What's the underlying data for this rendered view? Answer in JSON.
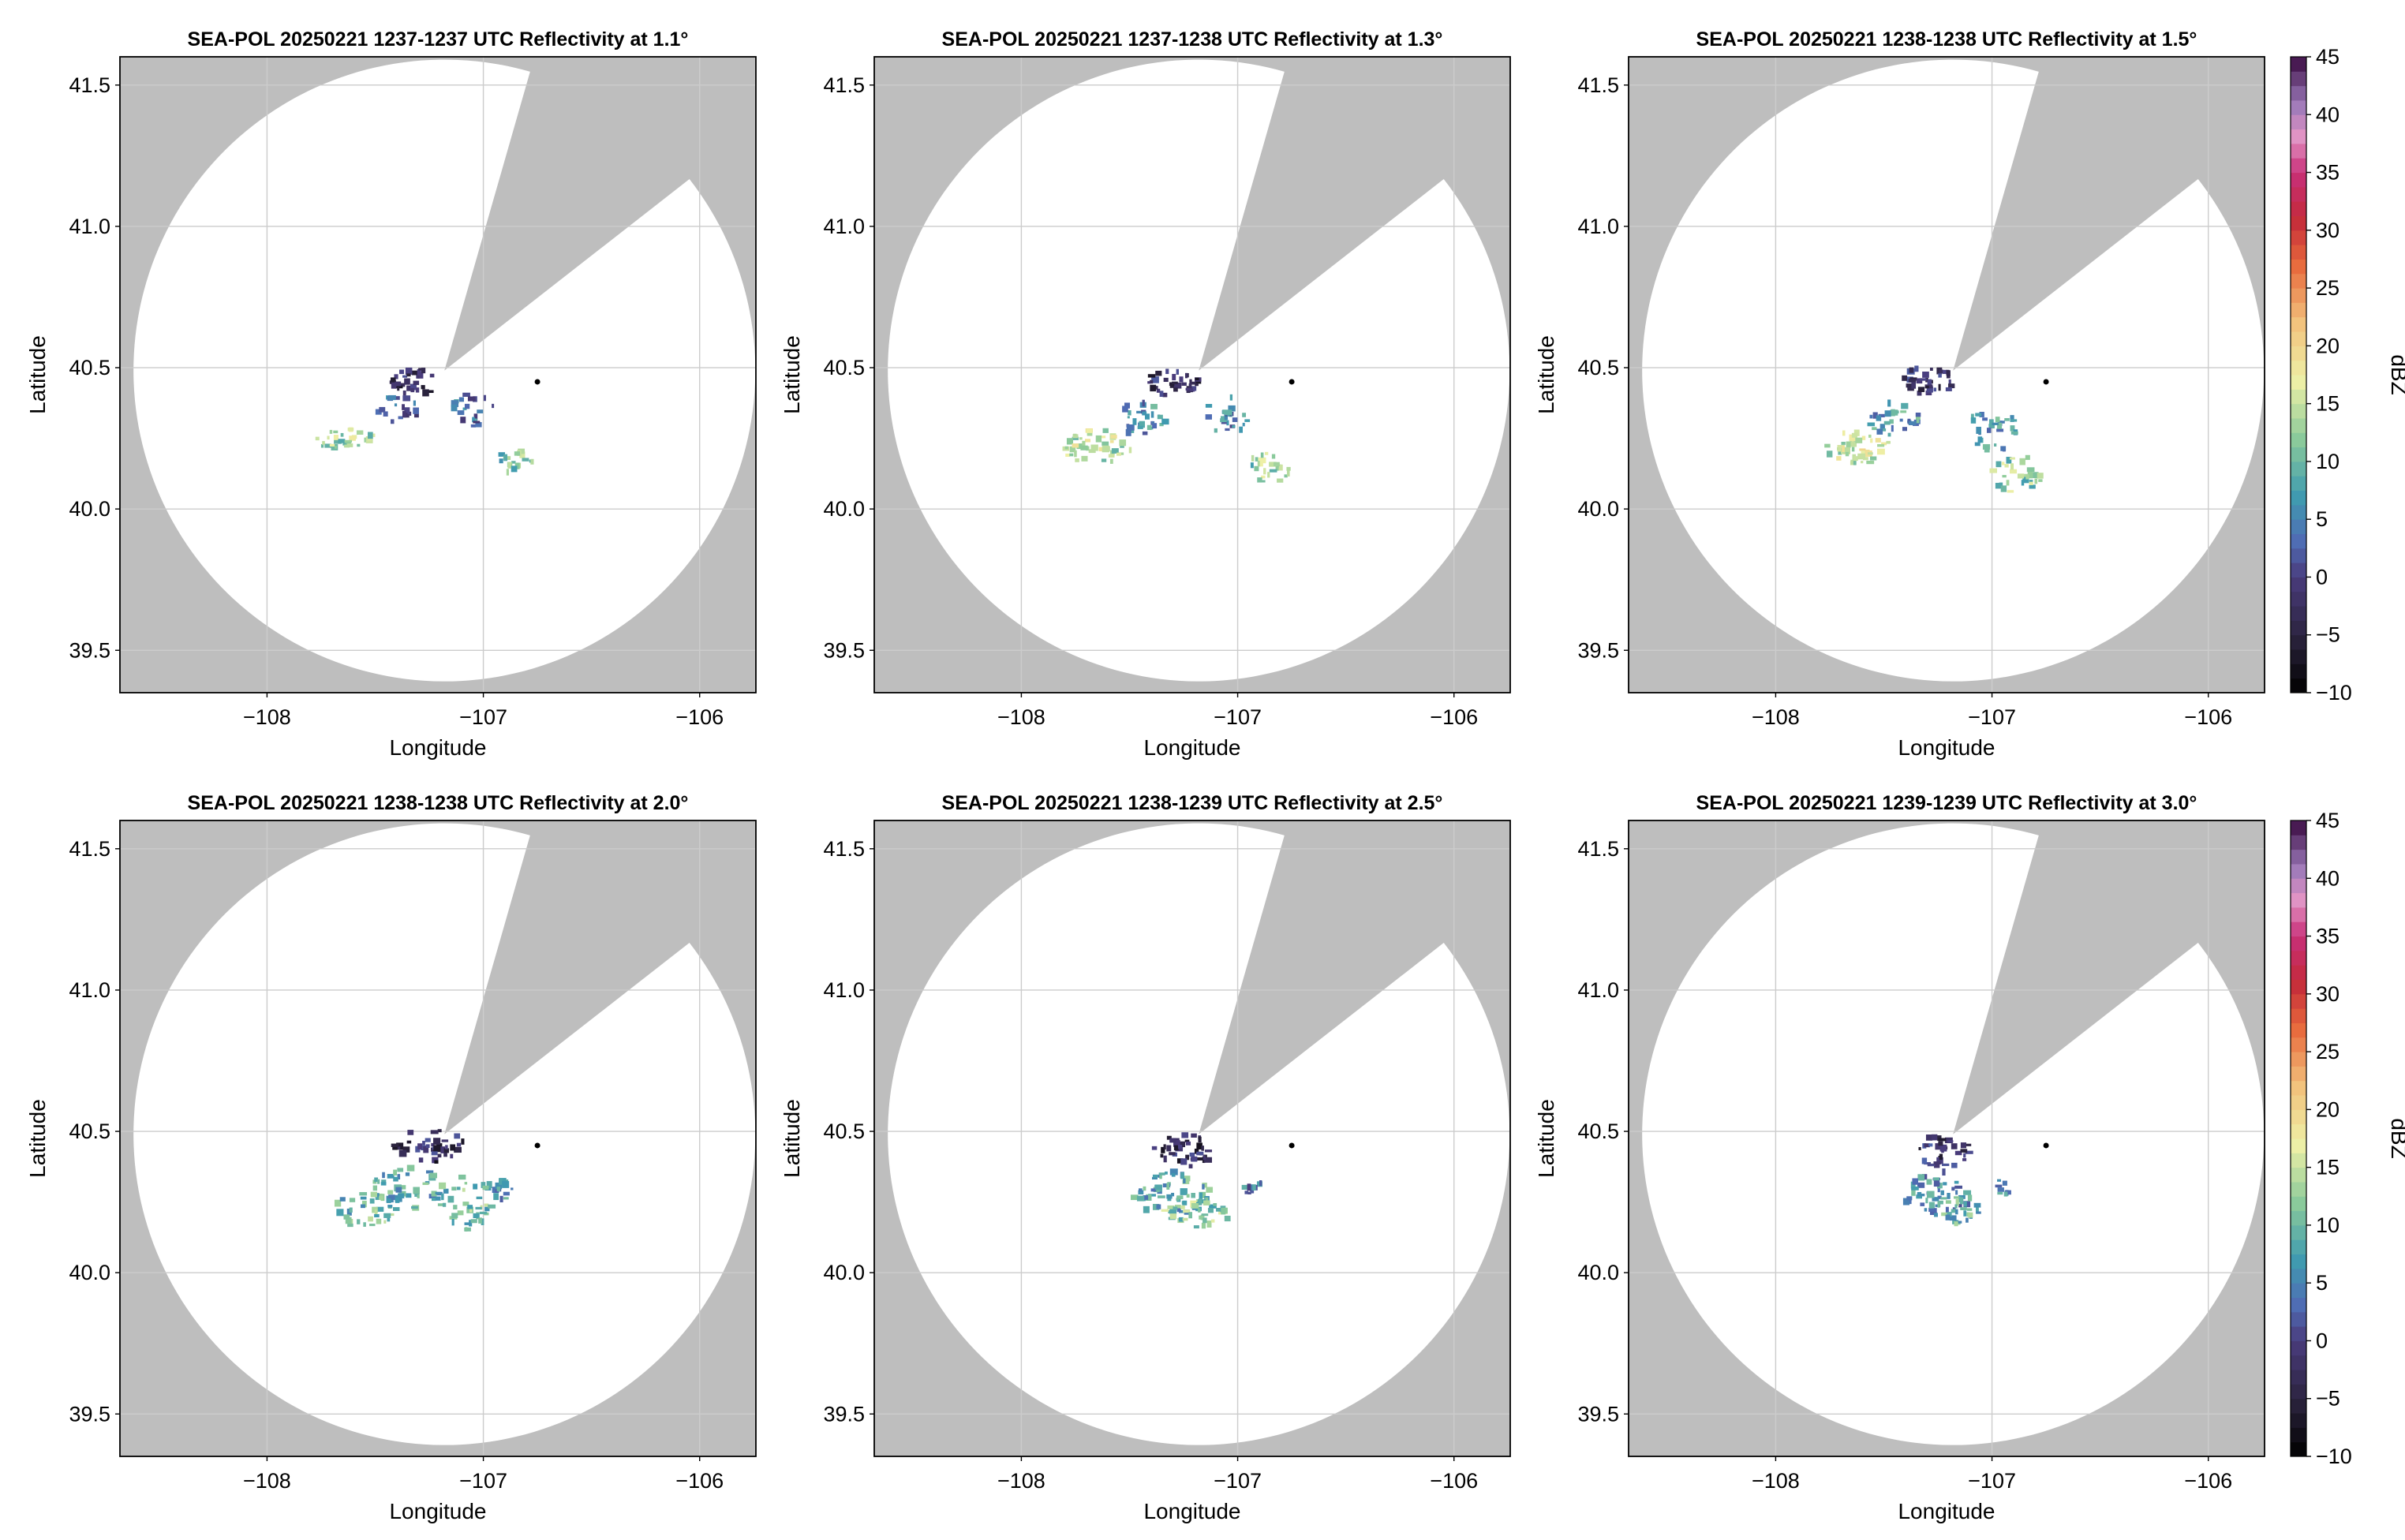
{
  "chart_data": [
    {
      "type": "heatmap",
      "title": "SEA-POL 20250221 1237-1237 UTC Reflectivity at 1.1°",
      "xlabel": "Longitude",
      "ylabel": "Latitude",
      "xlim": [
        -108.68,
        -105.74
      ],
      "ylim": [
        39.35,
        41.6
      ],
      "xticks": [
        -108,
        -107,
        -106
      ],
      "xtick_labels": [
        "−108",
        "−107",
        "−106"
      ],
      "yticks": [
        39.5,
        40.0,
        40.5,
        41.0,
        41.5
      ],
      "ytick_labels": [
        "39.5",
        "40.0",
        "40.5",
        "41.0",
        "41.5"
      ],
      "grid": true,
      "radar_center": [
        -107.18,
        40.49
      ],
      "coverage_radius_deg_lat": 1.1,
      "blocked_sector_deg": [
        16,
        52
      ],
      "marker": [
        -106.75,
        40.45
      ],
      "echo_clusters": [
        {
          "lon": -107.3,
          "lat": 40.45,
          "rlon": 0.12,
          "rlat": 0.05,
          "dbz": -3,
          "count": 30
        },
        {
          "lon": -107.4,
          "lat": 40.35,
          "rlon": 0.1,
          "rlat": 0.05,
          "dbz": 3,
          "count": 20
        },
        {
          "lon": -107.65,
          "lat": 40.25,
          "rlon": 0.14,
          "rlat": 0.04,
          "dbz": 13,
          "count": 30
        },
        {
          "lon": -107.05,
          "lat": 40.35,
          "rlon": 0.1,
          "rlat": 0.06,
          "dbz": 4,
          "count": 20
        },
        {
          "lon": -106.85,
          "lat": 40.17,
          "rlon": 0.08,
          "rlat": 0.05,
          "dbz": 11,
          "count": 18
        }
      ]
    },
    {
      "type": "heatmap",
      "title": "SEA-POL 20250221 1237-1238 UTC Reflectivity at 1.3°",
      "xlabel": "Longitude",
      "ylabel": "Latitude",
      "xlim": [
        -108.68,
        -105.74
      ],
      "ylim": [
        39.35,
        41.6
      ],
      "xticks": [
        -108,
        -107,
        -106
      ],
      "xtick_labels": [
        "−108",
        "−107",
        "−106"
      ],
      "yticks": [
        39.5,
        40.0,
        40.5,
        41.0,
        41.5
      ],
      "ytick_labels": [
        "39.5",
        "40.0",
        "40.5",
        "41.0",
        "41.5"
      ],
      "grid": true,
      "radar_center": [
        -107.18,
        40.49
      ],
      "coverage_radius_deg_lat": 1.1,
      "blocked_sector_deg": [
        16,
        52
      ],
      "marker": [
        -106.75,
        40.45
      ],
      "echo_clusters": [
        {
          "lon": -107.3,
          "lat": 40.45,
          "rlon": 0.12,
          "rlat": 0.05,
          "dbz": -3,
          "count": 35
        },
        {
          "lon": -107.45,
          "lat": 40.32,
          "rlon": 0.12,
          "rlat": 0.06,
          "dbz": 6,
          "count": 30
        },
        {
          "lon": -107.65,
          "lat": 40.22,
          "rlon": 0.16,
          "rlat": 0.06,
          "dbz": 14,
          "count": 45
        },
        {
          "lon": -107.05,
          "lat": 40.33,
          "rlon": 0.1,
          "rlat": 0.07,
          "dbz": 5,
          "count": 25
        },
        {
          "lon": -106.85,
          "lat": 40.15,
          "rlon": 0.1,
          "rlat": 0.06,
          "dbz": 12,
          "count": 25
        }
      ]
    },
    {
      "type": "heatmap",
      "title": "SEA-POL 20250221 1238-1238 UTC Reflectivity at 1.5°",
      "xlabel": "Longitude",
      "ylabel": "Latitude",
      "xlim": [
        -108.68,
        -105.74
      ],
      "ylim": [
        39.35,
        41.6
      ],
      "xticks": [
        -108,
        -107,
        -106
      ],
      "xtick_labels": [
        "−108",
        "−107",
        "−106"
      ],
      "yticks": [
        39.5,
        40.0,
        40.5,
        41.0,
        41.5
      ],
      "ytick_labels": [
        "39.5",
        "40.0",
        "40.5",
        "41.0",
        "41.5"
      ],
      "grid": true,
      "radar_center": [
        -107.18,
        40.49
      ],
      "coverage_radius_deg_lat": 1.1,
      "blocked_sector_deg": [
        16,
        52
      ],
      "marker": [
        -106.75,
        40.45
      ],
      "echo_clusters": [
        {
          "lon": -107.3,
          "lat": 40.45,
          "rlon": 0.14,
          "rlat": 0.05,
          "dbz": -2,
          "count": 35
        },
        {
          "lon": -107.45,
          "lat": 40.32,
          "rlon": 0.12,
          "rlat": 0.06,
          "dbz": 7,
          "count": 30
        },
        {
          "lon": -107.62,
          "lat": 40.22,
          "rlon": 0.15,
          "rlat": 0.06,
          "dbz": 15,
          "count": 45
        },
        {
          "lon": -107.0,
          "lat": 40.28,
          "rlon": 0.12,
          "rlat": 0.08,
          "dbz": 7,
          "count": 30
        },
        {
          "lon": -106.88,
          "lat": 40.12,
          "rlon": 0.12,
          "rlat": 0.07,
          "dbz": 12,
          "count": 30
        }
      ]
    },
    {
      "type": "heatmap",
      "title": "SEA-POL 20250221 1238-1238 UTC Reflectivity at 2.0°",
      "xlabel": "Longitude",
      "ylabel": "Latitude",
      "xlim": [
        -108.68,
        -105.74
      ],
      "ylim": [
        39.35,
        41.6
      ],
      "xticks": [
        -108,
        -107,
        -106
      ],
      "xtick_labels": [
        "−108",
        "−107",
        "−106"
      ],
      "yticks": [
        39.5,
        40.0,
        40.5,
        41.0,
        41.5
      ],
      "ytick_labels": [
        "39.5",
        "40.0",
        "40.5",
        "41.0",
        "41.5"
      ],
      "grid": true,
      "radar_center": [
        -107.18,
        40.49
      ],
      "coverage_radius_deg_lat": 1.1,
      "blocked_sector_deg": [
        16,
        52
      ],
      "marker": [
        -106.75,
        40.45
      ],
      "echo_clusters": [
        {
          "lon": -107.25,
          "lat": 40.45,
          "rlon": 0.16,
          "rlat": 0.06,
          "dbz": -3,
          "count": 40
        },
        {
          "lon": -107.35,
          "lat": 40.3,
          "rlon": 0.16,
          "rlat": 0.08,
          "dbz": 8,
          "count": 45
        },
        {
          "lon": -107.55,
          "lat": 40.22,
          "rlon": 0.14,
          "rlat": 0.06,
          "dbz": 10,
          "count": 35
        },
        {
          "lon": -107.08,
          "lat": 40.25,
          "rlon": 0.14,
          "rlat": 0.1,
          "dbz": 11,
          "count": 45
        },
        {
          "lon": -106.92,
          "lat": 40.28,
          "rlon": 0.06,
          "rlat": 0.05,
          "dbz": 6,
          "count": 15
        }
      ]
    },
    {
      "type": "heatmap",
      "title": "SEA-POL 20250221 1238-1239 UTC Reflectivity at 2.5°",
      "xlabel": "Longitude",
      "ylabel": "Latitude",
      "xlim": [
        -108.68,
        -105.74
      ],
      "ylim": [
        39.35,
        41.6
      ],
      "xticks": [
        -108,
        -107,
        -106
      ],
      "xtick_labels": [
        "−108",
        "−107",
        "−106"
      ],
      "yticks": [
        39.5,
        40.0,
        40.5,
        41.0,
        41.5
      ],
      "ytick_labels": [
        "39.5",
        "40.0",
        "40.5",
        "41.0",
        "41.5"
      ],
      "grid": true,
      "radar_center": [
        -107.18,
        40.49
      ],
      "coverage_radius_deg_lat": 1.1,
      "blocked_sector_deg": [
        16,
        52
      ],
      "marker": [
        -106.75,
        40.45
      ],
      "echo_clusters": [
        {
          "lon": -107.25,
          "lat": 40.43,
          "rlon": 0.14,
          "rlat": 0.06,
          "dbz": -3,
          "count": 40
        },
        {
          "lon": -107.3,
          "lat": 40.28,
          "rlon": 0.18,
          "rlat": 0.08,
          "dbz": 8,
          "count": 60
        },
        {
          "lon": -107.2,
          "lat": 40.2,
          "rlon": 0.16,
          "rlat": 0.06,
          "dbz": 12,
          "count": 40
        },
        {
          "lon": -106.92,
          "lat": 40.3,
          "rlon": 0.05,
          "rlat": 0.03,
          "dbz": 5,
          "count": 10
        }
      ]
    },
    {
      "type": "heatmap",
      "title": "SEA-POL 20250221 1239-1239 UTC Reflectivity at 3.0°",
      "xlabel": "Longitude",
      "ylabel": "Latitude",
      "xlim": [
        -108.68,
        -105.74
      ],
      "ylim": [
        39.35,
        41.6
      ],
      "xticks": [
        -108,
        -107,
        -106
      ],
      "xtick_labels": [
        "−108",
        "−107",
        "−106"
      ],
      "yticks": [
        39.5,
        40.0,
        40.5,
        41.0,
        41.5
      ],
      "ytick_labels": [
        "39.5",
        "40.0",
        "40.5",
        "41.0",
        "41.5"
      ],
      "grid": true,
      "radar_center": [
        -107.18,
        40.49
      ],
      "coverage_radius_deg_lat": 1.1,
      "blocked_sector_deg": [
        16,
        52
      ],
      "marker": [
        -106.75,
        40.45
      ],
      "echo_clusters": [
        {
          "lon": -107.22,
          "lat": 40.43,
          "rlon": 0.12,
          "rlat": 0.06,
          "dbz": -2,
          "count": 35
        },
        {
          "lon": -107.25,
          "lat": 40.28,
          "rlon": 0.16,
          "rlat": 0.08,
          "dbz": 6,
          "count": 50
        },
        {
          "lon": -107.15,
          "lat": 40.22,
          "rlon": 0.12,
          "rlat": 0.05,
          "dbz": 9,
          "count": 30
        },
        {
          "lon": -106.95,
          "lat": 40.3,
          "rlon": 0.04,
          "rlat": 0.03,
          "dbz": 5,
          "count": 8
        }
      ]
    }
  ],
  "colorbar": {
    "label": "dBZ",
    "range": [
      -10,
      45
    ],
    "ticks": [
      -10,
      -5,
      0,
      5,
      10,
      15,
      20,
      25,
      30,
      35,
      40,
      45
    ],
    "tick_labels": [
      "−10",
      "−5",
      "0",
      "5",
      "10",
      "15",
      "20",
      "25",
      "30",
      "35",
      "40",
      "45"
    ],
    "colormap_stops": [
      {
        "v": -10,
        "c": "#000000"
      },
      {
        "v": -5,
        "c": "#2c2440"
      },
      {
        "v": 0,
        "c": "#4a3c7c"
      },
      {
        "v": 3,
        "c": "#4f6cb4"
      },
      {
        "v": 7,
        "c": "#3f9bb0"
      },
      {
        "v": 12,
        "c": "#8ccb9a"
      },
      {
        "v": 17,
        "c": "#eef0a6"
      },
      {
        "v": 22,
        "c": "#f2c27c"
      },
      {
        "v": 27,
        "c": "#e86a3c"
      },
      {
        "v": 31,
        "c": "#c42a3a"
      },
      {
        "v": 35,
        "c": "#c8307a"
      },
      {
        "v": 38,
        "c": "#e394c4"
      },
      {
        "v": 41,
        "c": "#9a78b8"
      },
      {
        "v": 45,
        "c": "#3a0a40"
      }
    ]
  },
  "colors": {
    "blocked": "#bebebe",
    "coverage": "#ffffff",
    "grid": "#cccccc",
    "axis": "#000000"
  }
}
